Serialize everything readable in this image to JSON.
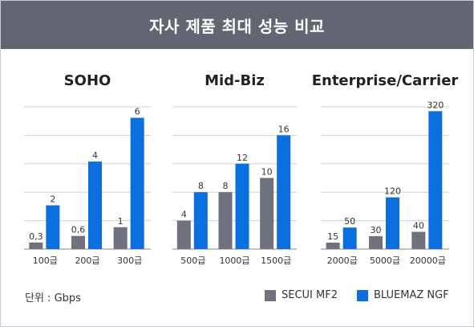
{
  "header": {
    "title": "자사 제품 최대 성능 비교"
  },
  "unit_label": "단위 : Gbps",
  "colors": {
    "secui": "#6f717e",
    "bluemaz": "#0b6fe0",
    "grid": "#cfd0d8",
    "axis": "#888888"
  },
  "legend": [
    {
      "label": "SECUI MF2",
      "color": "#6f717e"
    },
    {
      "label": "BLUEMAZ NGF",
      "color": "#0b6fe0"
    }
  ],
  "chart_data": [
    {
      "type": "bar",
      "title": "SOHO",
      "categories": [
        "100급",
        "200급",
        "300급"
      ],
      "series": [
        {
          "name": "SECUI MF2",
          "values": [
            0.3,
            0.6,
            1
          ],
          "labels": [
            "0,3",
            "0,6",
            "1"
          ]
        },
        {
          "name": "BLUEMAZ NGF",
          "values": [
            2,
            4,
            6
          ],
          "labels": [
            "2",
            "4",
            "6"
          ]
        }
      ],
      "ylim": [
        0,
        6.5
      ],
      "grid": true
    },
    {
      "type": "bar",
      "title": "Mid-Biz",
      "categories": [
        "500급",
        "1000급",
        "1500급"
      ],
      "series": [
        {
          "name": "SECUI MF2",
          "values": [
            4,
            8,
            10
          ],
          "labels": [
            "4",
            "8",
            "10"
          ]
        },
        {
          "name": "BLUEMAZ NGF",
          "values": [
            8,
            12,
            16
          ],
          "labels": [
            "8",
            "12",
            "16"
          ]
        }
      ],
      "ylim": [
        0,
        20
      ],
      "grid": true
    },
    {
      "type": "bar",
      "title": "Enterprise/Carrier",
      "categories": [
        "2000급",
        "5000급",
        "20000급"
      ],
      "series": [
        {
          "name": "SECUI MF2",
          "values": [
            15,
            30,
            40
          ],
          "labels": [
            "15",
            "30",
            "40"
          ]
        },
        {
          "name": "BLUEMAZ NGF",
          "values": [
            50,
            120,
            320
          ],
          "labels": [
            "50",
            "120",
            "320"
          ]
        }
      ],
      "ylim": [
        0,
        330
      ],
      "grid": true
    }
  ]
}
